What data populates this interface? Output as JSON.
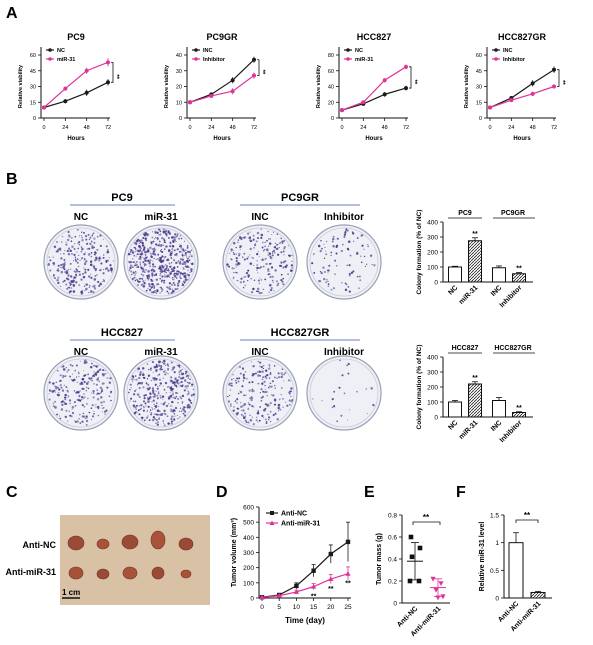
{
  "panel_letters": [
    "A",
    "B",
    "C",
    "D",
    "E",
    "F"
  ],
  "colors": {
    "control": "#1a1a1a",
    "treated": "#e0339a",
    "plate_bg": "#eef0f6",
    "dot": "#4b3a8c"
  },
  "panel_a": {
    "xlabel": "Hours",
    "ylabel": "Relative viability",
    "xticks": [
      0,
      24,
      48,
      72
    ],
    "yticks": [
      0,
      20,
      40,
      60
    ],
    "sig": "**"
  },
  "panel_b": {
    "groups": [
      {
        "left_title": "PC9",
        "left_labels": [
          "NC",
          "miR-31"
        ],
        "right_title": "PC9GR",
        "right_labels": [
          "INC",
          "Inhibitor"
        ]
      },
      {
        "left_title": "HCC827",
        "left_labels": [
          "NC",
          "miR-31"
        ],
        "right_title": "HCC827GR",
        "right_labels": [
          "INC",
          "Inhibitor"
        ]
      }
    ]
  },
  "panel_c": {
    "row_labels": [
      "Anti-NC",
      "Anti-miR-31"
    ],
    "scale": "1 cm"
  },
  "chart_data": [
    {
      "type": "line",
      "title": "PC9",
      "xlabel": "Hours",
      "ylabel": "Relative viability",
      "x": [
        0,
        24,
        48,
        72
      ],
      "ylim": [
        0,
        60
      ],
      "legend": "top-left",
      "sig": "**",
      "series": [
        {
          "name": "NC",
          "values": [
            10,
            16,
            24,
            34
          ],
          "err": [
            1,
            2,
            3,
            3
          ],
          "color": "#1a1a1a"
        },
        {
          "name": "miR-31",
          "values": [
            10,
            28,
            45,
            53
          ],
          "err": [
            1,
            2,
            3,
            4
          ],
          "color": "#e0339a"
        }
      ]
    },
    {
      "type": "line",
      "title": "PC9GR",
      "xlabel": "Hours",
      "ylabel": "Relative viability",
      "x": [
        0,
        24,
        48,
        72
      ],
      "ylim": [
        0,
        40
      ],
      "legend": "top-left",
      "sig": "**",
      "series": [
        {
          "name": "INC",
          "values": [
            10,
            15,
            24,
            37
          ],
          "err": [
            1,
            1,
            2,
            2
          ],
          "color": "#1a1a1a"
        },
        {
          "name": "Inhibitor",
          "values": [
            10,
            14,
            17,
            27
          ],
          "err": [
            1,
            1,
            2,
            2
          ],
          "color": "#e0339a"
        }
      ]
    },
    {
      "type": "line",
      "title": "HCC827",
      "xlabel": "Hours",
      "ylabel": "Relative viability",
      "x": [
        0,
        24,
        48,
        72
      ],
      "ylim": [
        0,
        80
      ],
      "legend": "top-left",
      "sig": "**",
      "series": [
        {
          "name": "NC",
          "values": [
            10,
            18,
            30,
            38
          ],
          "err": [
            1,
            2,
            3,
            3
          ],
          "color": "#1a1a1a"
        },
        {
          "name": "miR-31",
          "values": [
            10,
            20,
            48,
            65
          ],
          "err": [
            1,
            2,
            3,
            3
          ],
          "color": "#e0339a"
        }
      ]
    },
    {
      "type": "line",
      "title": "HCC827GR",
      "xlabel": "Hours",
      "ylabel": "Relative viability",
      "x": [
        0,
        24,
        48,
        72
      ],
      "ylim": [
        0,
        60
      ],
      "legend": "top-left",
      "sig": "**",
      "series": [
        {
          "name": "INC",
          "values": [
            10,
            19,
            33,
            46
          ],
          "err": [
            1,
            2,
            3,
            3
          ],
          "color": "#1a1a1a"
        },
        {
          "name": "Inhibitor",
          "values": [
            10,
            17,
            23,
            30
          ],
          "err": [
            1,
            1,
            2,
            2
          ],
          "color": "#e0339a"
        }
      ]
    },
    {
      "type": "bar",
      "ylabel": "Colony formation (% of NC)",
      "ylim": [
        0,
        400
      ],
      "yticks": [
        0,
        100,
        200,
        300,
        400
      ],
      "groups": [
        "PC9",
        "PC9GR"
      ],
      "categories": [
        "NC",
        "miR-31",
        "INC",
        "Inhibitor"
      ],
      "values": [
        100,
        275,
        95,
        55
      ],
      "err": [
        5,
        20,
        12,
        8
      ],
      "fill": [
        "white",
        "hatch",
        "white",
        "hatch"
      ],
      "sig": [
        "",
        "**",
        "",
        "**"
      ]
    },
    {
      "type": "bar",
      "ylabel": "Colony formation (% of NC)",
      "ylim": [
        0,
        400
      ],
      "yticks": [
        0,
        100,
        200,
        300,
        400
      ],
      "groups": [
        "HCC827",
        "HCC827GR"
      ],
      "categories": [
        "NC",
        "miR-31",
        "INC",
        "Inhibitor"
      ],
      "values": [
        100,
        220,
        110,
        30
      ],
      "err": [
        10,
        15,
        20,
        5
      ],
      "fill": [
        "white",
        "hatch",
        "white",
        "hatch"
      ],
      "sig": [
        "",
        "**",
        "",
        "**"
      ]
    },
    {
      "type": "line",
      "xlabel": "Time (day)",
      "ylabel": "Tumor volume (mm³)",
      "x": [
        0,
        5,
        10,
        15,
        20,
        25
      ],
      "ylim": [
        0,
        600
      ],
      "yticks": [
        0,
        100,
        200,
        300,
        400,
        500,
        600
      ],
      "legend": "top-left",
      "series": [
        {
          "name": "Anti-NC",
          "values": [
            5,
            20,
            80,
            180,
            290,
            370
          ],
          "err": [
            2,
            8,
            20,
            40,
            60,
            130
          ],
          "color": "#1a1a1a",
          "marker": "square"
        },
        {
          "name": "Anti-miR-31",
          "values": [
            5,
            15,
            40,
            75,
            125,
            160
          ],
          "err": [
            2,
            5,
            12,
            20,
            30,
            45
          ],
          "color": "#e0339a",
          "marker": "triangle"
        }
      ],
      "sig": [
        {
          "x": 15,
          "text": "**"
        },
        {
          "x": 20,
          "text": "**"
        },
        {
          "x": 25,
          "text": "**"
        }
      ]
    },
    {
      "type": "scatter",
      "ylabel": "Tumor mass (g)",
      "ylim": [
        0,
        0.8
      ],
      "yticks": [
        0.0,
        0.2,
        0.4,
        0.6,
        0.8
      ],
      "categories": [
        "Anti-NC",
        "Anti-miR-31"
      ],
      "points": [
        [
          0.6,
          0.5,
          0.42,
          0.2,
          0.2
        ],
        [
          0.22,
          0.18,
          0.12,
          0.06,
          0.05
        ]
      ],
      "mean": [
        0.38,
        0.14
      ],
      "sd": [
        0.17,
        0.08
      ],
      "sig": "**"
    },
    {
      "type": "bar",
      "ylabel": "Relative miR-31 level",
      "ylim": [
        0,
        1.5
      ],
      "yticks": [
        0.0,
        0.5,
        1.0,
        1.5
      ],
      "categories": [
        "Anti-NC",
        "Anti-miR-31"
      ],
      "values": [
        1.0,
        0.1
      ],
      "err": [
        0.18,
        0.02
      ],
      "sig": "**"
    }
  ]
}
